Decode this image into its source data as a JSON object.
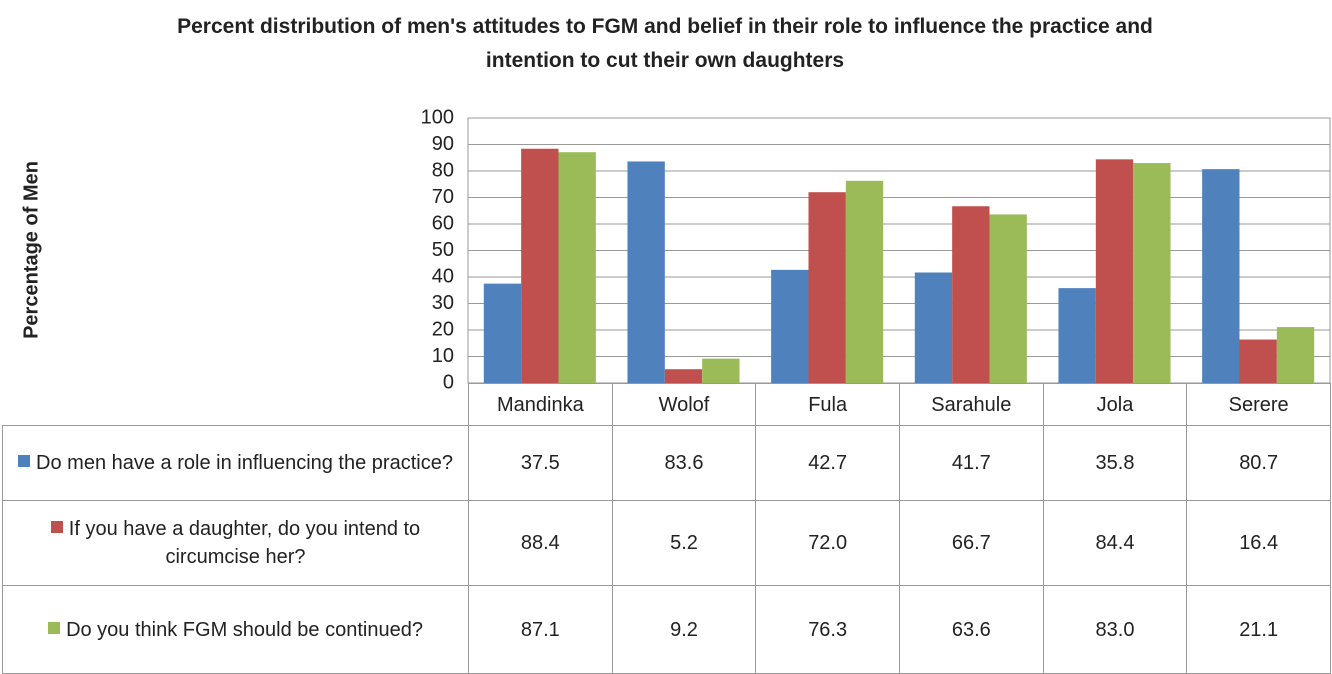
{
  "chart_data": {
    "type": "bar",
    "title": "Percent distribution of men's attitudes to FGM and belief in their role to influence the practice and intention to cut their own daughters",
    "y_label": "Percentage of Men",
    "categories": [
      "Mandinka",
      "Wolof",
      "Fula",
      "Sarahule",
      "Jola",
      "Serere"
    ],
    "series": [
      {
        "name": "Do men have a role in influencing the practice?",
        "color": "#4f81bd",
        "values": [
          37.5,
          83.6,
          42.7,
          41.7,
          35.8,
          80.7
        ],
        "value_labels": [
          "37.5",
          "83.6",
          "42.7",
          "41.7",
          "35.8",
          "80.7"
        ]
      },
      {
        "name": "If you have a daughter, do you intend to circumcise her?",
        "color": "#c0504d",
        "values": [
          88.4,
          5.2,
          72,
          66.7,
          84.4,
          16.4
        ],
        "value_labels": [
          "88.4",
          "5.2",
          "72.0",
          "66.7",
          "84.4",
          "16.4"
        ]
      },
      {
        "name": "Do you think FGM should be continued?",
        "color": "#9bbb59",
        "values": [
          87.1,
          9.2,
          76.3,
          63.6,
          83,
          21.1
        ],
        "value_labels": [
          "87.1",
          "9.2",
          "76.3",
          "63.6",
          "83.0",
          "21.1"
        ]
      }
    ],
    "ylim": [
      0,
      100
    ],
    "yticks": [
      0,
      10,
      20,
      30,
      40,
      50,
      60,
      70,
      80,
      90,
      100
    ],
    "grid": true
  }
}
